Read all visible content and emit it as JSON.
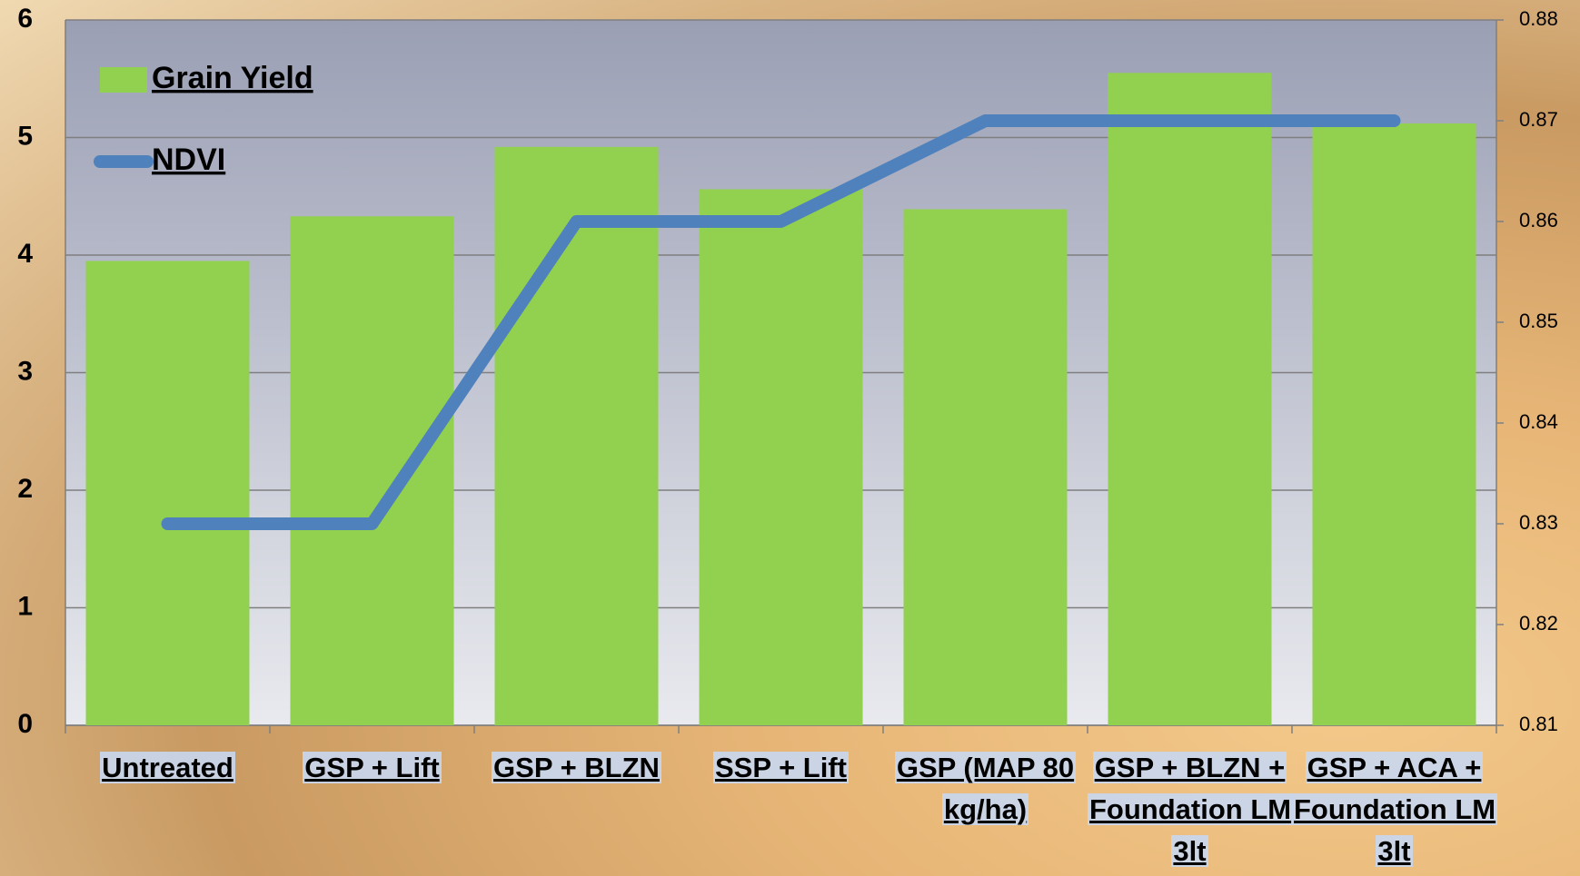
{
  "chart_data": {
    "type": "bar_line",
    "categories": [
      "Untreated",
      "GSP + Lift",
      "GSP + BLZN",
      "SSP + Lift",
      "GSP (MAP 80 kg/ha)",
      "GSP + BLZN + Foundation LM 3lt",
      "GSP + ACA + Foundation LM 3lt"
    ],
    "series": [
      {
        "name": "Grain Yield",
        "color": "#92d050",
        "type": "bar",
        "values": [
          3.95,
          4.33,
          4.92,
          4.56,
          4.39,
          5.55,
          5.12
        ]
      },
      {
        "name": "NDVI",
        "color": "#4f81bd",
        "type": "line",
        "axis": "y2",
        "values": [
          0.83,
          0.83,
          0.86,
          0.86,
          0.87,
          0.87,
          0.87
        ]
      }
    ],
    "ylim": [
      0,
      6
    ],
    "yticks": [
      0,
      1,
      2,
      3,
      4,
      5,
      6
    ],
    "y2lim": [
      0.81,
      0.88
    ],
    "y2ticks": [
      0.81,
      0.82,
      0.83,
      0.84,
      0.85,
      0.86,
      0.87,
      0.88
    ],
    "grid": true,
    "legend": "upper left"
  }
}
